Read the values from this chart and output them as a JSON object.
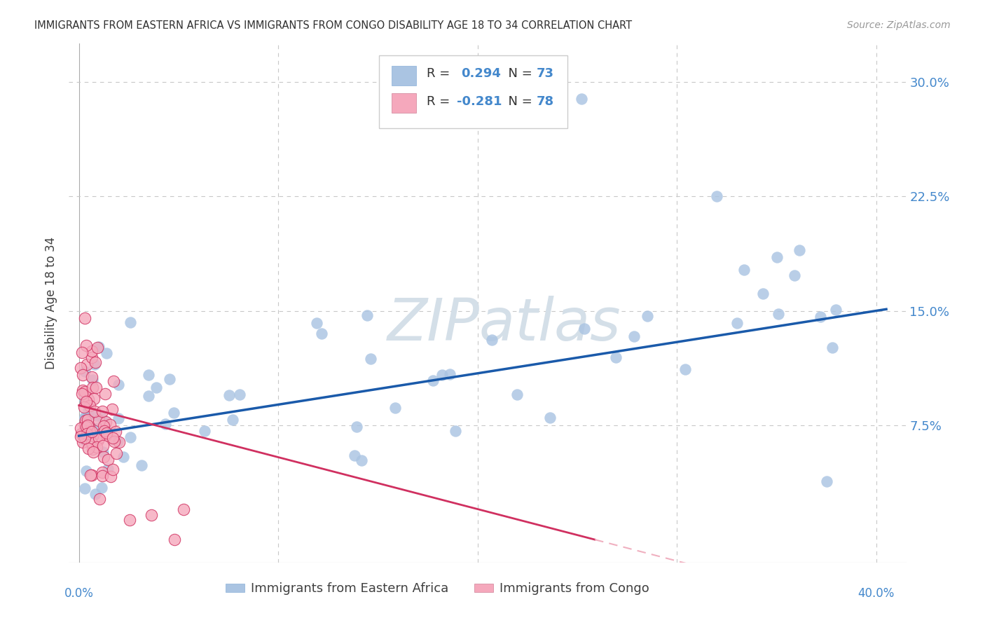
{
  "title": "IMMIGRANTS FROM EASTERN AFRICA VS IMMIGRANTS FROM CONGO DISABILITY AGE 18 TO 34 CORRELATION CHART",
  "source": "Source: ZipAtlas.com",
  "ylabel": "Disability Age 18 to 34",
  "R_eastern": 0.294,
  "N_eastern": 73,
  "R_congo": -0.281,
  "N_congo": 78,
  "color_eastern": "#aac4e2",
  "color_eastern_line": "#1a5aaa",
  "color_congo": "#f5a8bc",
  "color_congo_line": "#d03060",
  "color_congo_line_dash": "#f0b0c0",
  "background_color": "#ffffff",
  "grid_color": "#c8c8c8",
  "title_color": "#303030",
  "axis_label_color": "#4488cc",
  "watermark_color": "#d4dfe8",
  "xlim": [
    -0.005,
    0.415
  ],
  "ylim": [
    -0.015,
    0.325
  ],
  "yticks": [
    0.075,
    0.15,
    0.225,
    0.3
  ],
  "ytick_labels": [
    "7.5%",
    "15.0%",
    "22.5%",
    "30.0%"
  ],
  "xtick_vals": [
    0.0,
    0.1,
    0.2,
    0.3,
    0.4
  ]
}
